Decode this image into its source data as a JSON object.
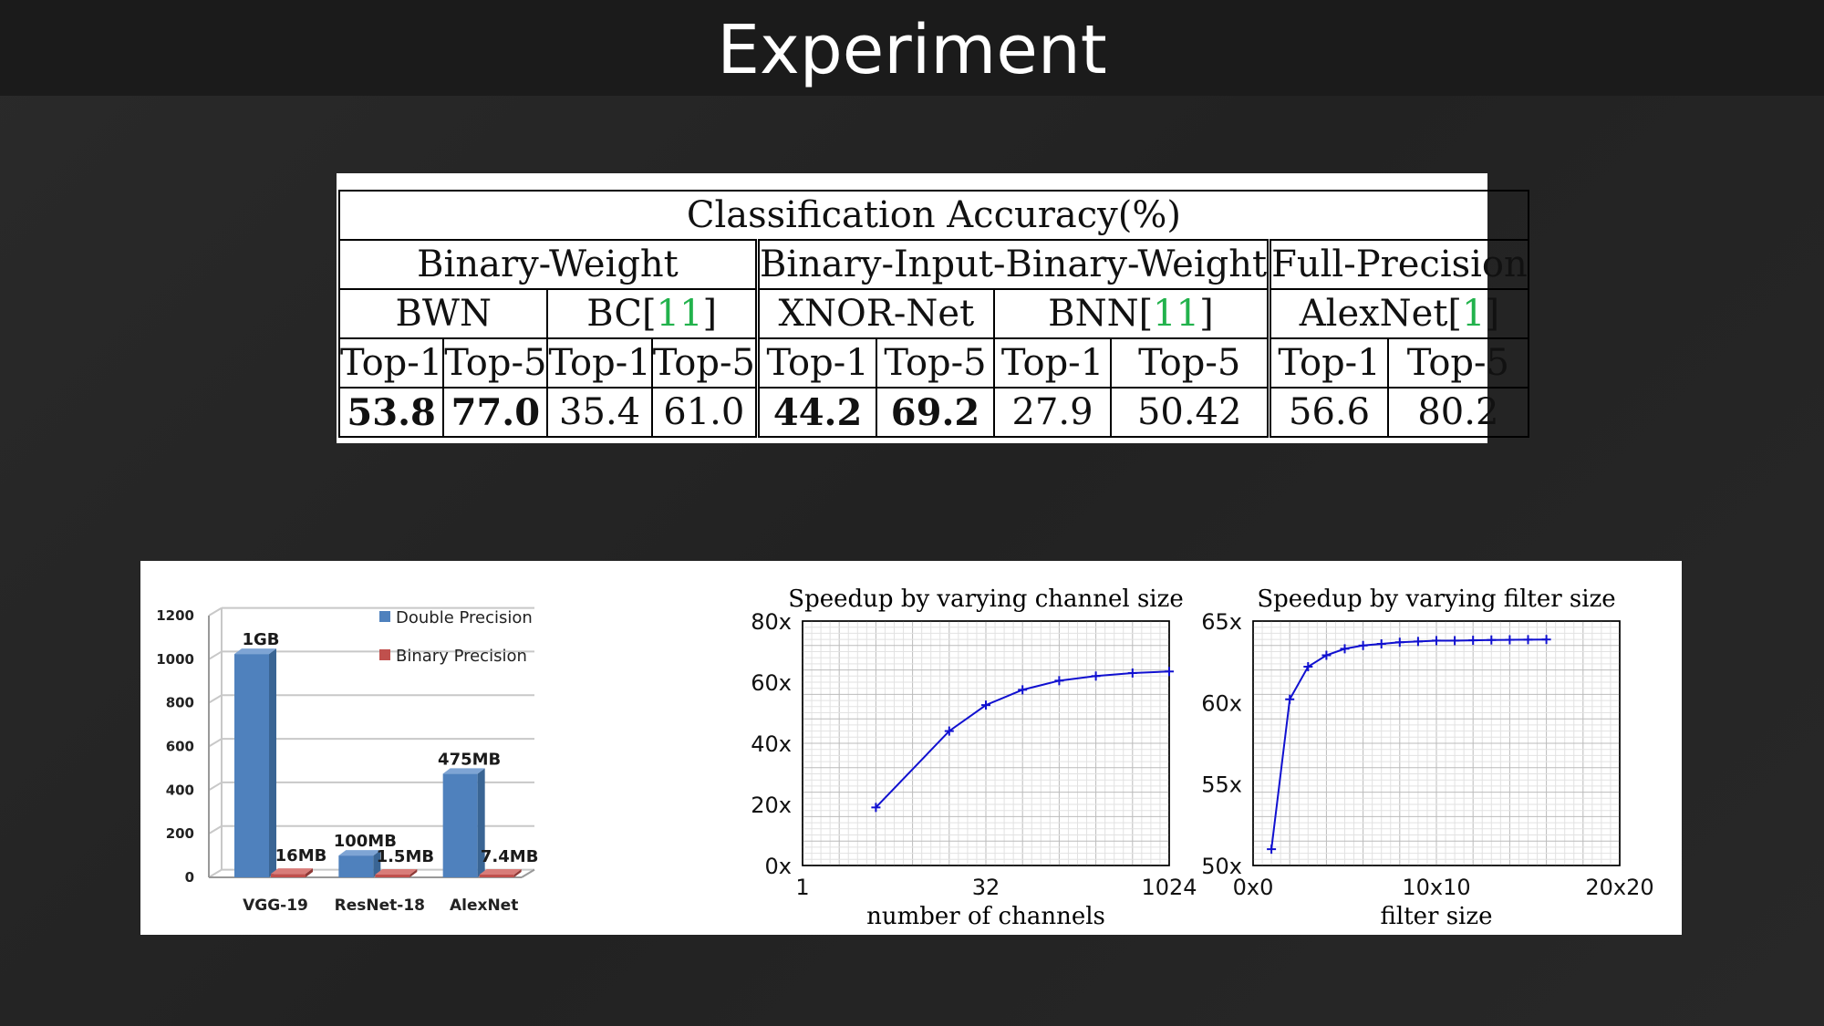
{
  "slide": {
    "title": "Experiment"
  },
  "table": {
    "caption": "Classification Accuracy(%)",
    "groups": [
      "Binary-Weight",
      "Binary-Input-Binary-Weight",
      "Full-Precision"
    ],
    "methods": [
      {
        "name": "BWN",
        "cite": ""
      },
      {
        "name": "BC[",
        "cite": "11",
        "close": "]"
      },
      {
        "name": "XNOR-Net",
        "cite": ""
      },
      {
        "name": "BNN[",
        "cite": "11",
        "close": "]"
      },
      {
        "name": "AlexNet[",
        "cite": "1",
        "close": "]"
      }
    ],
    "metrics": [
      "Top-1",
      "Top-5",
      "Top-1",
      "Top-5",
      "Top-1",
      "Top-5",
      "Top-1",
      "Top-5",
      "Top-1",
      "Top-5"
    ],
    "values": [
      "53.8",
      "77.0",
      "35.4",
      "61.0",
      "44.2",
      "69.2",
      "27.9",
      "50.42",
      "56.6",
      "80.2"
    ]
  },
  "chart_data": [
    {
      "type": "bar",
      "title": "",
      "categories": [
        "VGG-19",
        "ResNet-18",
        "AlexNet"
      ],
      "series": [
        {
          "name": "Double Precision",
          "color": "#4f81bd",
          "values": [
            1024,
            100,
            475
          ],
          "labels": [
            "1GB",
            "100MB",
            "475MB"
          ]
        },
        {
          "name": "Binary Precision",
          "color": "#c0504d",
          "values": [
            16,
            1.5,
            7.4
          ],
          "labels": [
            "16MB",
            "1.5MB",
            "7.4MB"
          ]
        }
      ],
      "yticks": [
        "0",
        "200",
        "400",
        "600",
        "800",
        "1000",
        "1200"
      ],
      "ylim": [
        0,
        1200
      ],
      "grid": true,
      "legend": "top-right"
    },
    {
      "type": "line",
      "title": "Speedup by varying channel size",
      "xlabel": "number of channels",
      "ylabel": "",
      "xscale": "log2",
      "xticks": [
        "1",
        "32",
        "1024"
      ],
      "yticks": [
        "0x",
        "20x",
        "40x",
        "60x",
        "80x"
      ],
      "xlim": [
        1,
        1024
      ],
      "ylim": [
        0,
        80
      ],
      "color": "#1010d0",
      "x": [
        4,
        16,
        32,
        64,
        128,
        256,
        512,
        1024
      ],
      "y": [
        19,
        44,
        52.5,
        57.5,
        60.5,
        62,
        63,
        63.5
      ],
      "grid": true
    },
    {
      "type": "line",
      "title": "Speedup by varying filter size",
      "xlabel": "filter size",
      "ylabel": "",
      "xticks": [
        "0x0",
        "10x10",
        "20x20"
      ],
      "yticks": [
        "50x",
        "55x",
        "60x",
        "65x"
      ],
      "xlim": [
        0,
        20
      ],
      "ylim": [
        50,
        65
      ],
      "color": "#1010d0",
      "x": [
        1,
        2,
        3,
        4,
        5,
        6,
        7,
        8,
        9,
        10,
        11,
        12,
        13,
        14,
        15,
        16
      ],
      "y": [
        51,
        60.2,
        62.2,
        62.9,
        63.3,
        63.5,
        63.6,
        63.7,
        63.75,
        63.8,
        63.8,
        63.82,
        63.84,
        63.85,
        63.86,
        63.87
      ],
      "grid": true
    }
  ]
}
